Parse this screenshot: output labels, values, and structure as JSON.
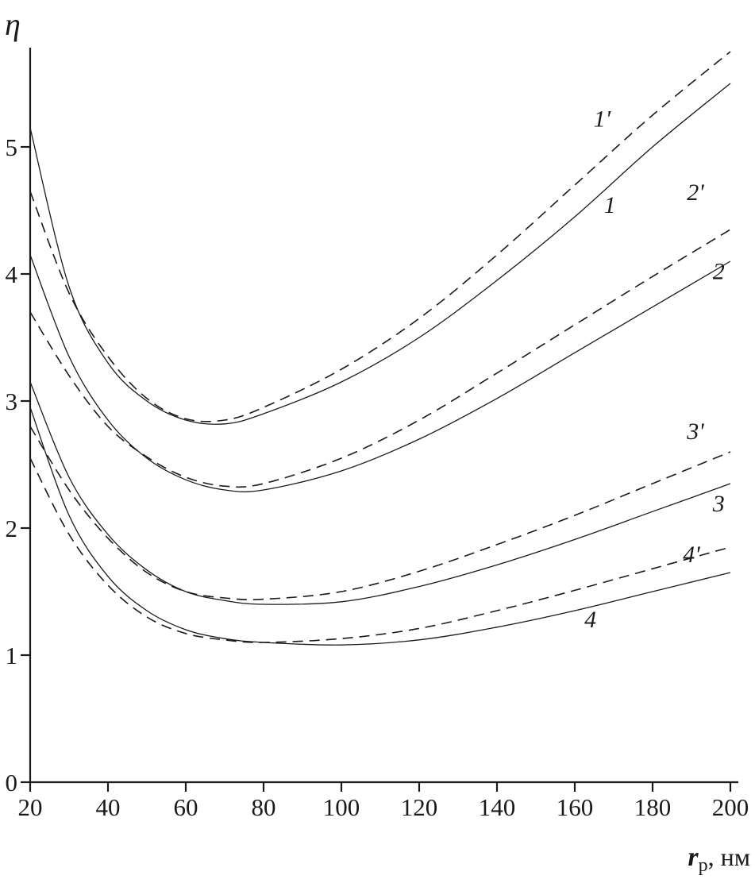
{
  "figure": {
    "background": "#ffffff",
    "ink": "#1a1a1a"
  },
  "chart_data": {
    "type": "line",
    "title": "",
    "ylabel": "η",
    "xlabel": {
      "symbol": "r",
      "subscript": "p",
      "suffix": ", нм"
    },
    "xlim": [
      20,
      200
    ],
    "ylim": [
      0,
      5.78
    ],
    "xticks": [
      20,
      40,
      60,
      80,
      100,
      120,
      140,
      160,
      180,
      200
    ],
    "yticks": [
      0,
      1,
      2,
      3,
      4,
      5
    ],
    "grid": false,
    "legend": "none",
    "x": [
      20,
      30,
      40,
      50,
      60,
      70,
      80,
      100,
      120,
      140,
      160,
      180,
      200
    ],
    "series": [
      {
        "name": "1",
        "style": "solid",
        "values": [
          5.15,
          3.9,
          3.3,
          3.0,
          2.85,
          2.82,
          2.9,
          3.15,
          3.5,
          3.95,
          4.45,
          5.0,
          5.5
        ]
      },
      {
        "name": "1'",
        "style": "dashed",
        "values": [
          4.65,
          3.85,
          3.35,
          3.02,
          2.86,
          2.85,
          2.95,
          3.25,
          3.65,
          4.15,
          4.7,
          5.25,
          5.75
        ]
      },
      {
        "name": "2",
        "style": "solid",
        "values": [
          4.15,
          3.35,
          2.85,
          2.55,
          2.38,
          2.3,
          2.3,
          2.45,
          2.7,
          3.02,
          3.38,
          3.74,
          4.1
        ]
      },
      {
        "name": "2'",
        "style": "dashed",
        "values": [
          3.7,
          3.2,
          2.8,
          2.56,
          2.4,
          2.33,
          2.35,
          2.55,
          2.85,
          3.22,
          3.6,
          3.98,
          4.35
        ]
      },
      {
        "name": "3",
        "style": "solid",
        "values": [
          3.15,
          2.4,
          1.95,
          1.67,
          1.5,
          1.43,
          1.4,
          1.42,
          1.54,
          1.71,
          1.91,
          2.13,
          2.35
        ]
      },
      {
        "name": "3'",
        "style": "dashed",
        "values": [
          2.8,
          2.3,
          1.92,
          1.65,
          1.5,
          1.45,
          1.44,
          1.5,
          1.66,
          1.87,
          2.1,
          2.35,
          2.6
        ]
      },
      {
        "name": "4",
        "style": "solid",
        "values": [
          2.95,
          2.1,
          1.62,
          1.35,
          1.2,
          1.13,
          1.1,
          1.08,
          1.12,
          1.22,
          1.35,
          1.5,
          1.65
        ]
      },
      {
        "name": "4'",
        "style": "dashed",
        "values": [
          2.55,
          1.95,
          1.55,
          1.3,
          1.17,
          1.12,
          1.1,
          1.13,
          1.21,
          1.35,
          1.51,
          1.68,
          1.85
        ]
      }
    ],
    "annotations": [
      {
        "text": "1'",
        "x": 167,
        "y": 5.16
      },
      {
        "text": "1",
        "x": 169,
        "y": 4.48
      },
      {
        "text": "2'",
        "x": 191,
        "y": 4.58
      },
      {
        "text": "2",
        "x": 197,
        "y": 3.96
      },
      {
        "text": "3'",
        "x": 191,
        "y": 2.7
      },
      {
        "text": "3",
        "x": 197,
        "y": 2.13
      },
      {
        "text": "4'",
        "x": 190,
        "y": 1.73
      },
      {
        "text": "4",
        "x": 164,
        "y": 1.22
      }
    ]
  }
}
